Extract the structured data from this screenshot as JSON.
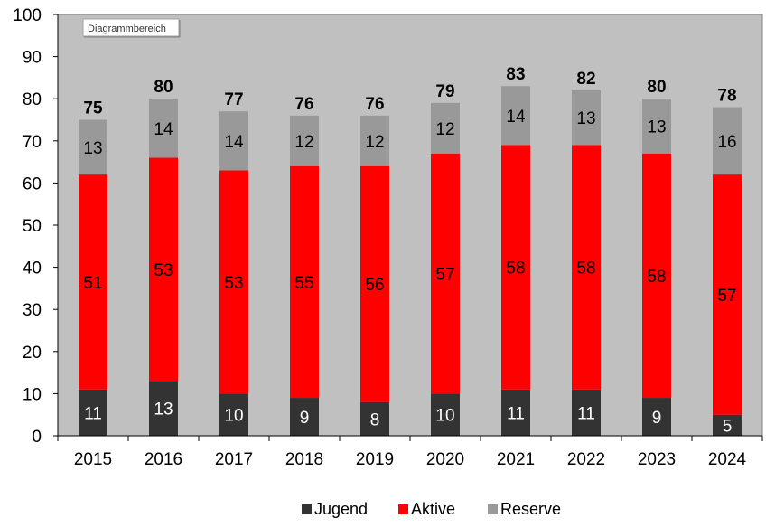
{
  "chart_data": {
    "type": "bar",
    "stacked": true,
    "categories": [
      "2015",
      "2016",
      "2017",
      "2018",
      "2019",
      "2020",
      "2021",
      "2022",
      "2023",
      "2024"
    ],
    "series": [
      {
        "name": "Jugend",
        "color": "#333333",
        "values": [
          11,
          13,
          10,
          9,
          8,
          10,
          11,
          11,
          9,
          5
        ]
      },
      {
        "name": "Aktive",
        "color": "#ff0000",
        "values": [
          51,
          53,
          53,
          55,
          56,
          57,
          58,
          58,
          58,
          57
        ]
      },
      {
        "name": "Reserve",
        "color": "#999999",
        "values": [
          13,
          14,
          14,
          12,
          12,
          12,
          14,
          13,
          13,
          16
        ]
      }
    ],
    "totals": [
      75,
      80,
      77,
      76,
      76,
      79,
      83,
      82,
      80,
      78
    ],
    "ylim": [
      0,
      100
    ],
    "yticks": [
      0,
      10,
      20,
      30,
      40,
      50,
      60,
      70,
      80,
      90,
      100
    ],
    "grid": false,
    "plot_background": "#c0c0c0",
    "legend_position": "bottom",
    "tooltip": "Diagrammbereich"
  }
}
